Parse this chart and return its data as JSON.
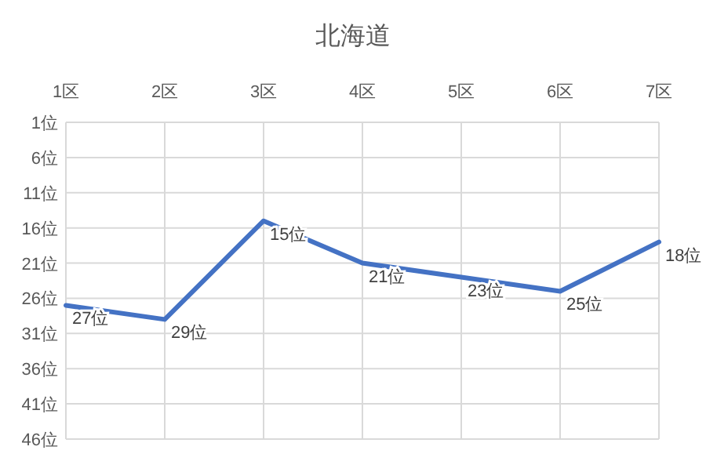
{
  "chart_data": {
    "type": "line",
    "title": "北海道",
    "categories": [
      "1区",
      "2区",
      "3区",
      "4区",
      "5区",
      "6区",
      "7区"
    ],
    "series": [
      {
        "color": "#4472c4",
        "values": [
          27,
          29,
          15,
          21,
          23,
          25,
          18
        ],
        "value_labels": [
          "27位",
          "29位",
          "15位",
          "21位",
          "23位",
          "25位",
          "18位"
        ]
      }
    ],
    "ylim": [
      46,
      1
    ],
    "yticks": [
      {
        "value": 1,
        "label": "1位"
      },
      {
        "value": 6,
        "label": "6位"
      },
      {
        "value": 11,
        "label": "11位"
      },
      {
        "value": 16,
        "label": "16位"
      },
      {
        "value": 21,
        "label": "21位"
      },
      {
        "value": 26,
        "label": "26位"
      },
      {
        "value": 31,
        "label": "31位"
      },
      {
        "value": 36,
        "label": "36位"
      },
      {
        "value": 41,
        "label": "41位"
      },
      {
        "value": 46,
        "label": "46位"
      }
    ],
    "grid": true,
    "marker": "none",
    "line_style": "solid"
  }
}
